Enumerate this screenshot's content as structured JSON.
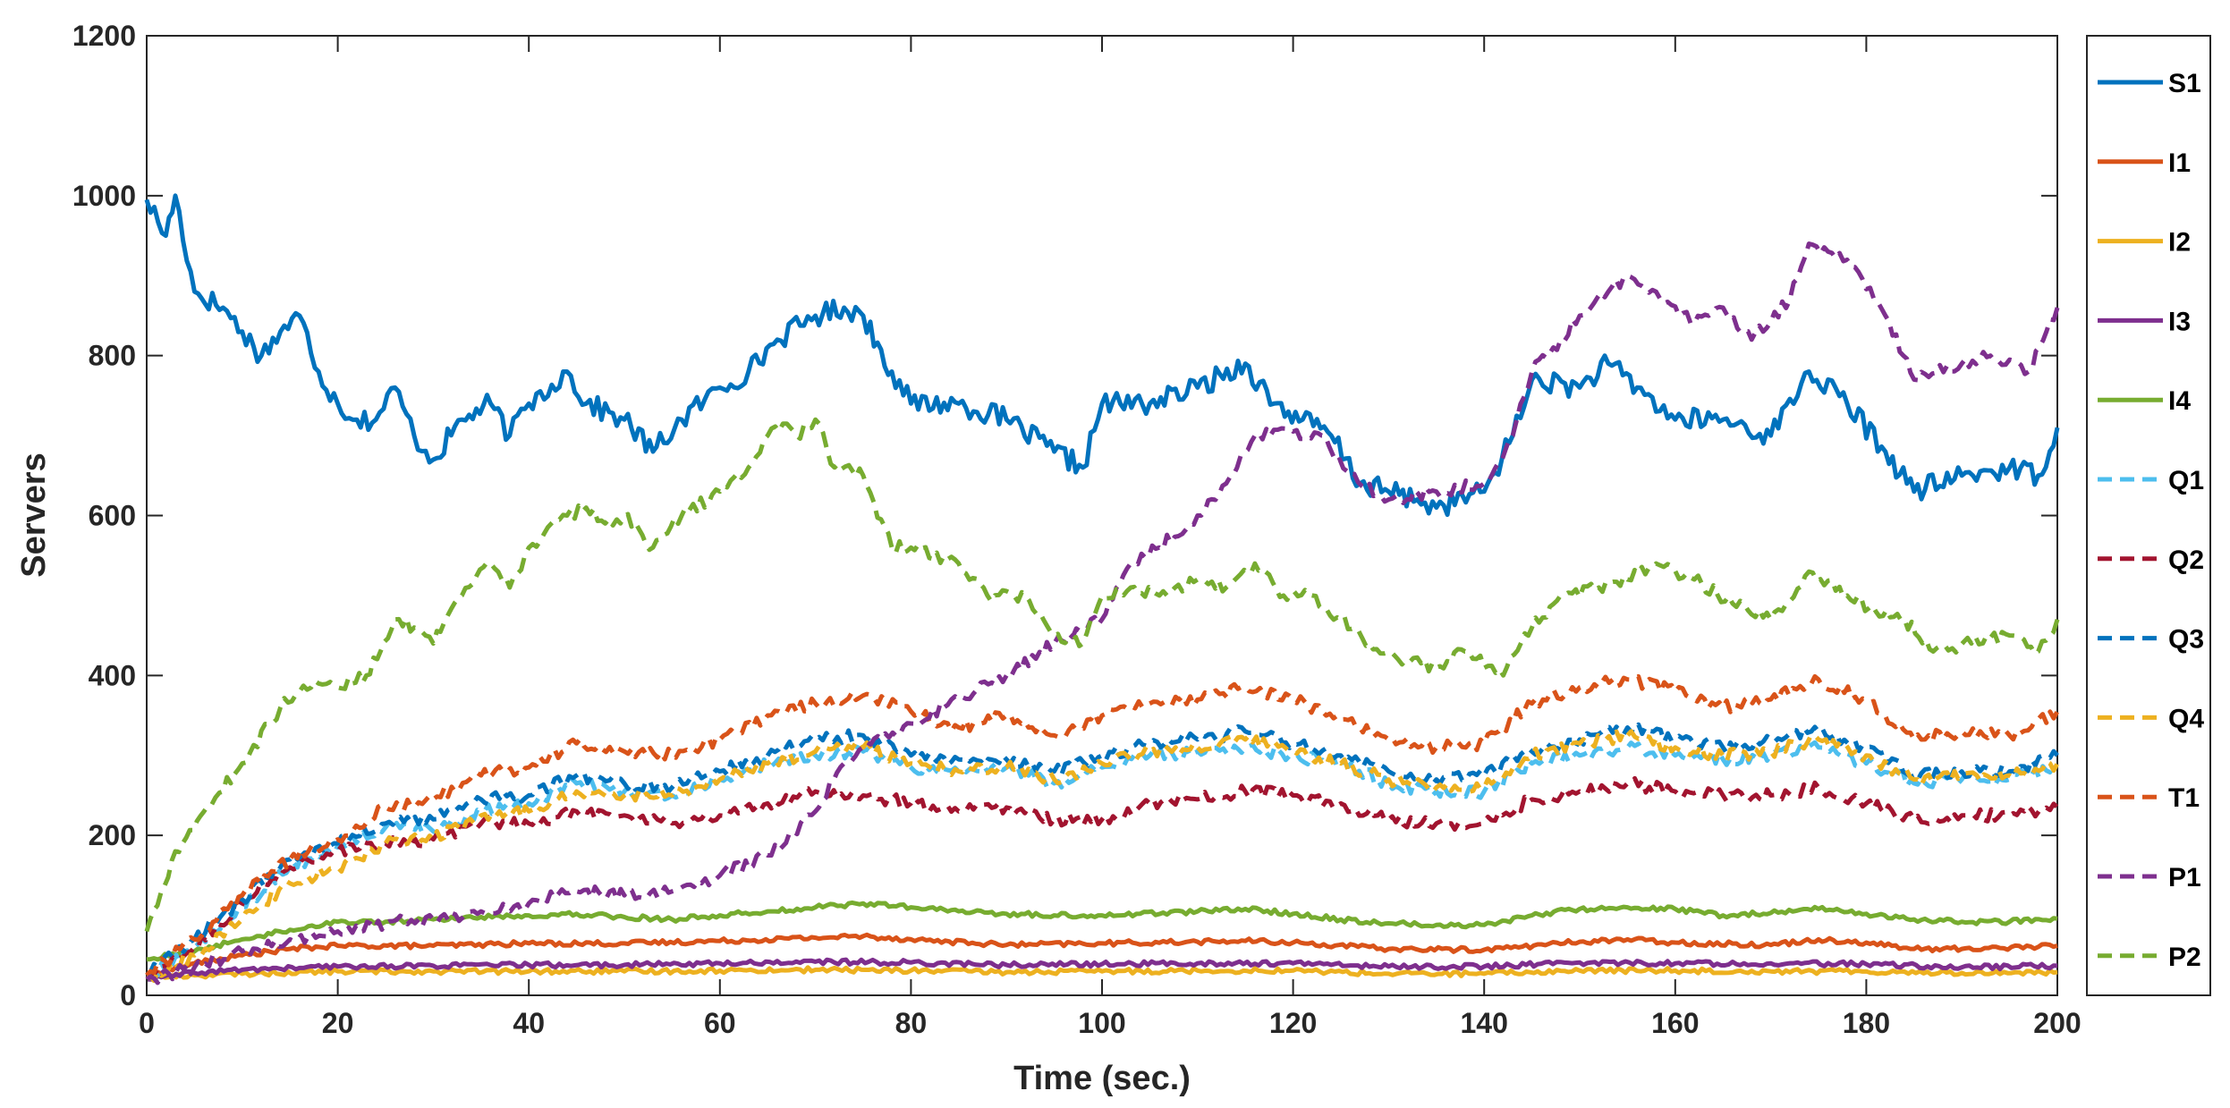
{
  "chart_data": {
    "type": "line",
    "title": "",
    "xlabel": "Time (sec.)",
    "ylabel": "Servers",
    "xlim": [
      0,
      200
    ],
    "ylim": [
      0,
      1200
    ],
    "xticks": [
      0,
      20,
      40,
      60,
      80,
      100,
      120,
      140,
      160,
      180,
      200
    ],
    "yticks": [
      0,
      200,
      400,
      600,
      800,
      1000,
      1200
    ],
    "grid": false,
    "legend_position": "outside-right",
    "series": [
      {
        "name": "S1",
        "color": "#0072BD",
        "dash": "solid",
        "x": [
          0,
          2,
          3,
          5,
          8,
          10,
          12,
          14,
          16,
          18,
          20,
          22,
          24,
          26,
          28,
          30,
          33,
          36,
          38,
          40,
          44,
          46,
          50,
          53,
          56,
          60,
          63,
          66,
          70,
          73,
          75,
          78,
          80,
          85,
          90,
          95,
          98,
          100,
          105,
          110,
          115,
          118,
          121,
          124,
          127,
          130,
          133,
          135,
          140,
          143,
          145,
          150,
          153,
          156,
          160,
          165,
          170,
          174,
          178,
          182,
          185,
          190,
          195,
          198,
          200
        ],
        "y": [
          995,
          950,
          1000,
          880,
          860,
          830,
          800,
          830,
          850,
          780,
          740,
          720,
          720,
          760,
          700,
          670,
          720,
          740,
          700,
          740,
          780,
          740,
          720,
          680,
          720,
          760,
          780,
          820,
          850,
          860,
          850,
          780,
          740,
          740,
          720,
          680,
          660,
          740,
          740,
          760,
          790,
          740,
          720,
          700,
          640,
          630,
          620,
          610,
          630,
          700,
          770,
          760,
          790,
          760,
          720,
          720,
          700,
          780,
          740,
          680,
          630,
          650,
          660,
          650,
          710
        ]
      },
      {
        "name": "I1",
        "color": "#D95319",
        "dash": "solid",
        "x": [
          0,
          5,
          10,
          15,
          20,
          30,
          40,
          50,
          60,
          70,
          75,
          80,
          90,
          100,
          110,
          115,
          120,
          130,
          140,
          150,
          155,
          160,
          170,
          175,
          180,
          185,
          190,
          200
        ],
        "y": [
          25,
          40,
          50,
          58,
          62,
          62,
          65,
          65,
          68,
          72,
          74,
          70,
          63,
          65,
          67,
          68,
          66,
          58,
          57,
          67,
          70,
          66,
          63,
          70,
          66,
          58,
          58,
          62
        ]
      },
      {
        "name": "I2",
        "color": "#EDB120",
        "dash": "solid",
        "x": [
          0,
          5,
          10,
          20,
          30,
          40,
          50,
          60,
          70,
          80,
          90,
          100,
          110,
          120,
          130,
          140,
          150,
          160,
          170,
          180,
          190,
          200
        ],
        "y": [
          22,
          25,
          27,
          30,
          30,
          30,
          30,
          31,
          32,
          31,
          29,
          30,
          31,
          31,
          27,
          27,
          31,
          31,
          30,
          30,
          28,
          29
        ]
      },
      {
        "name": "I3",
        "color": "#7E2F8E",
        "dash": "solid",
        "x": [
          0,
          5,
          10,
          20,
          30,
          40,
          50,
          60,
          70,
          80,
          90,
          100,
          110,
          120,
          130,
          140,
          150,
          160,
          170,
          180,
          190,
          200
        ],
        "y": [
          20,
          28,
          32,
          36,
          37,
          38,
          38,
          40,
          42,
          41,
          38,
          39,
          40,
          40,
          36,
          36,
          41,
          40,
          40,
          39,
          35,
          37
        ]
      },
      {
        "name": "I4",
        "color": "#77AC30",
        "dash": "solid",
        "x": [
          0,
          5,
          10,
          15,
          20,
          25,
          30,
          35,
          40,
          45,
          50,
          55,
          60,
          65,
          70,
          75,
          80,
          85,
          90,
          95,
          100,
          110,
          115,
          120,
          125,
          130,
          135,
          140,
          145,
          150,
          155,
          160,
          165,
          170,
          175,
          180,
          185,
          190,
          195,
          200
        ],
        "y": [
          45,
          55,
          70,
          82,
          92,
          92,
          95,
          98,
          100,
          102,
          98,
          95,
          100,
          105,
          110,
          115,
          110,
          105,
          102,
          100,
          100,
          105,
          108,
          102,
          95,
          90,
          88,
          88,
          100,
          108,
          110,
          108,
          100,
          103,
          108,
          102,
          95,
          92,
          92,
          96
        ]
      },
      {
        "name": "Q1",
        "color": "#4DBEEE",
        "dash": "dashed",
        "x": [
          0,
          5,
          10,
          15,
          20,
          25,
          30,
          35,
          40,
          45,
          50,
          55,
          60,
          65,
          70,
          75,
          80,
          85,
          90,
          95,
          100,
          105,
          110,
          115,
          120,
          125,
          130,
          135,
          140,
          145,
          150,
          155,
          160,
          165,
          170,
          175,
          180,
          185,
          190,
          195,
          200
        ],
        "y": [
          20,
          60,
          110,
          160,
          185,
          210,
          205,
          230,
          240,
          265,
          255,
          250,
          270,
          290,
          300,
          305,
          285,
          280,
          285,
          265,
          285,
          300,
          305,
          310,
          300,
          290,
          265,
          255,
          255,
          290,
          300,
          310,
          300,
          295,
          300,
          310,
          290,
          265,
          270,
          270,
          285
        ]
      },
      {
        "name": "Q2",
        "color": "#A2142F",
        "dash": "dashed",
        "x": [
          0,
          5,
          10,
          15,
          20,
          25,
          30,
          35,
          40,
          45,
          50,
          55,
          60,
          65,
          70,
          75,
          80,
          85,
          90,
          95,
          100,
          105,
          110,
          115,
          120,
          125,
          130,
          135,
          140,
          145,
          150,
          155,
          160,
          165,
          170,
          175,
          180,
          185,
          190,
          195,
          200
        ],
        "y": [
          20,
          60,
          115,
          160,
          180,
          190,
          195,
          215,
          215,
          230,
          225,
          215,
          225,
          240,
          255,
          250,
          240,
          230,
          235,
          220,
          220,
          240,
          245,
          255,
          250,
          240,
          220,
          215,
          215,
          245,
          255,
          265,
          255,
          250,
          250,
          260,
          240,
          220,
          225,
          225,
          235
        ]
      },
      {
        "name": "Q3",
        "color": "#0072BD",
        "dash": "dashed",
        "x": [
          0,
          5,
          10,
          15,
          20,
          25,
          30,
          35,
          40,
          45,
          50,
          55,
          60,
          65,
          70,
          75,
          80,
          85,
          90,
          95,
          100,
          105,
          110,
          115,
          120,
          125,
          130,
          135,
          140,
          145,
          150,
          155,
          160,
          165,
          170,
          175,
          180,
          185,
          190,
          195,
          200
        ],
        "y": [
          25,
          70,
          120,
          170,
          190,
          215,
          220,
          245,
          250,
          275,
          265,
          260,
          280,
          300,
          320,
          325,
          300,
          295,
          295,
          280,
          300,
          315,
          320,
          330,
          315,
          300,
          280,
          270,
          275,
          305,
          320,
          335,
          320,
          310,
          320,
          330,
          310,
          275,
          280,
          280,
          300
        ]
      },
      {
        "name": "Q4",
        "color": "#EDB120",
        "dash": "dashed",
        "x": [
          0,
          5,
          10,
          15,
          20,
          25,
          30,
          35,
          40,
          45,
          50,
          55,
          60,
          65,
          70,
          75,
          80,
          85,
          90,
          95,
          100,
          105,
          110,
          115,
          120,
          125,
          130,
          135,
          140,
          145,
          150,
          155,
          160,
          165,
          170,
          175,
          180,
          185,
          190,
          195,
          200
        ],
        "y": [
          20,
          50,
          95,
          140,
          160,
          190,
          195,
          225,
          230,
          255,
          250,
          250,
          270,
          290,
          305,
          310,
          290,
          280,
          285,
          270,
          290,
          305,
          310,
          320,
          305,
          290,
          270,
          260,
          260,
          300,
          315,
          325,
          310,
          300,
          305,
          320,
          300,
          270,
          275,
          275,
          290
        ]
      },
      {
        "name": "T1",
        "color": "#D95319",
        "dash": "dashed",
        "x": [
          0,
          5,
          10,
          15,
          20,
          25,
          30,
          35,
          40,
          45,
          50,
          55,
          60,
          65,
          70,
          75,
          80,
          85,
          90,
          95,
          100,
          105,
          110,
          115,
          120,
          125,
          130,
          135,
          140,
          145,
          150,
          155,
          160,
          165,
          170,
          175,
          180,
          185,
          190,
          195,
          200
        ],
        "y": [
          25,
          70,
          125,
          170,
          195,
          235,
          245,
          275,
          285,
          315,
          305,
          300,
          320,
          350,
          365,
          375,
          355,
          335,
          350,
          325,
          350,
          365,
          370,
          385,
          370,
          345,
          320,
          310,
          315,
          365,
          385,
          395,
          380,
          360,
          370,
          395,
          370,
          320,
          330,
          325,
          355
        ]
      },
      {
        "name": "P1",
        "color": "#7E2F8E",
        "dash": "dashed",
        "x": [
          0,
          5,
          10,
          15,
          20,
          25,
          30,
          35,
          40,
          45,
          50,
          55,
          60,
          65,
          70,
          73,
          75,
          80,
          85,
          90,
          95,
          100,
          103,
          106,
          110,
          113,
          116,
          120,
          123,
          126,
          130,
          135,
          140,
          143,
          145,
          148,
          150,
          153,
          155,
          158,
          162,
          165,
          168,
          172,
          174,
          178,
          182,
          185,
          190,
          193,
          197,
          200
        ],
        "y": [
          20,
          35,
          55,
          70,
          80,
          90,
          95,
          105,
          115,
          130,
          125,
          130,
          150,
          175,
          230,
          290,
          310,
          340,
          370,
          400,
          440,
          470,
          540,
          560,
          600,
          640,
          700,
          705,
          700,
          650,
          620,
          630,
          640,
          700,
          780,
          820,
          850,
          880,
          900,
          880,
          840,
          860,
          820,
          870,
          940,
          920,
          850,
          770,
          790,
          800,
          780,
          860
        ]
      },
      {
        "name": "P2",
        "color": "#77AC30",
        "dash": "dashed",
        "x": [
          0,
          3,
          6,
          10,
          14,
          16,
          18,
          20,
          23,
          26,
          28,
          30,
          33,
          36,
          38,
          40,
          44,
          46,
          48,
          50,
          53,
          56,
          60,
          63,
          65,
          67,
          68,
          70,
          72,
          75,
          78,
          80,
          85,
          88,
          92,
          95,
          98,
          100,
          103,
          106,
          110,
          113,
          116,
          119,
          122,
          125,
          128,
          131,
          135,
          138,
          142,
          145,
          148,
          152,
          155,
          158,
          162,
          166,
          170,
          174,
          178,
          181,
          184,
          187,
          191,
          195,
          198,
          200
        ],
        "y": [
          80,
          180,
          230,
          290,
          360,
          380,
          390,
          385,
          400,
          470,
          460,
          440,
          500,
          540,
          510,
          560,
          600,
          610,
          590,
          600,
          560,
          600,
          630,
          660,
          700,
          715,
          700,
          720,
          660,
          650,
          560,
          560,
          540,
          500,
          500,
          450,
          440,
          500,
          510,
          500,
          520,
          510,
          540,
          500,
          500,
          470,
          440,
          420,
          410,
          430,
          400,
          460,
          500,
          510,
          520,
          540,
          520,
          490,
          470,
          530,
          500,
          480,
          470,
          430,
          440,
          450,
          430,
          470
        ]
      }
    ]
  }
}
